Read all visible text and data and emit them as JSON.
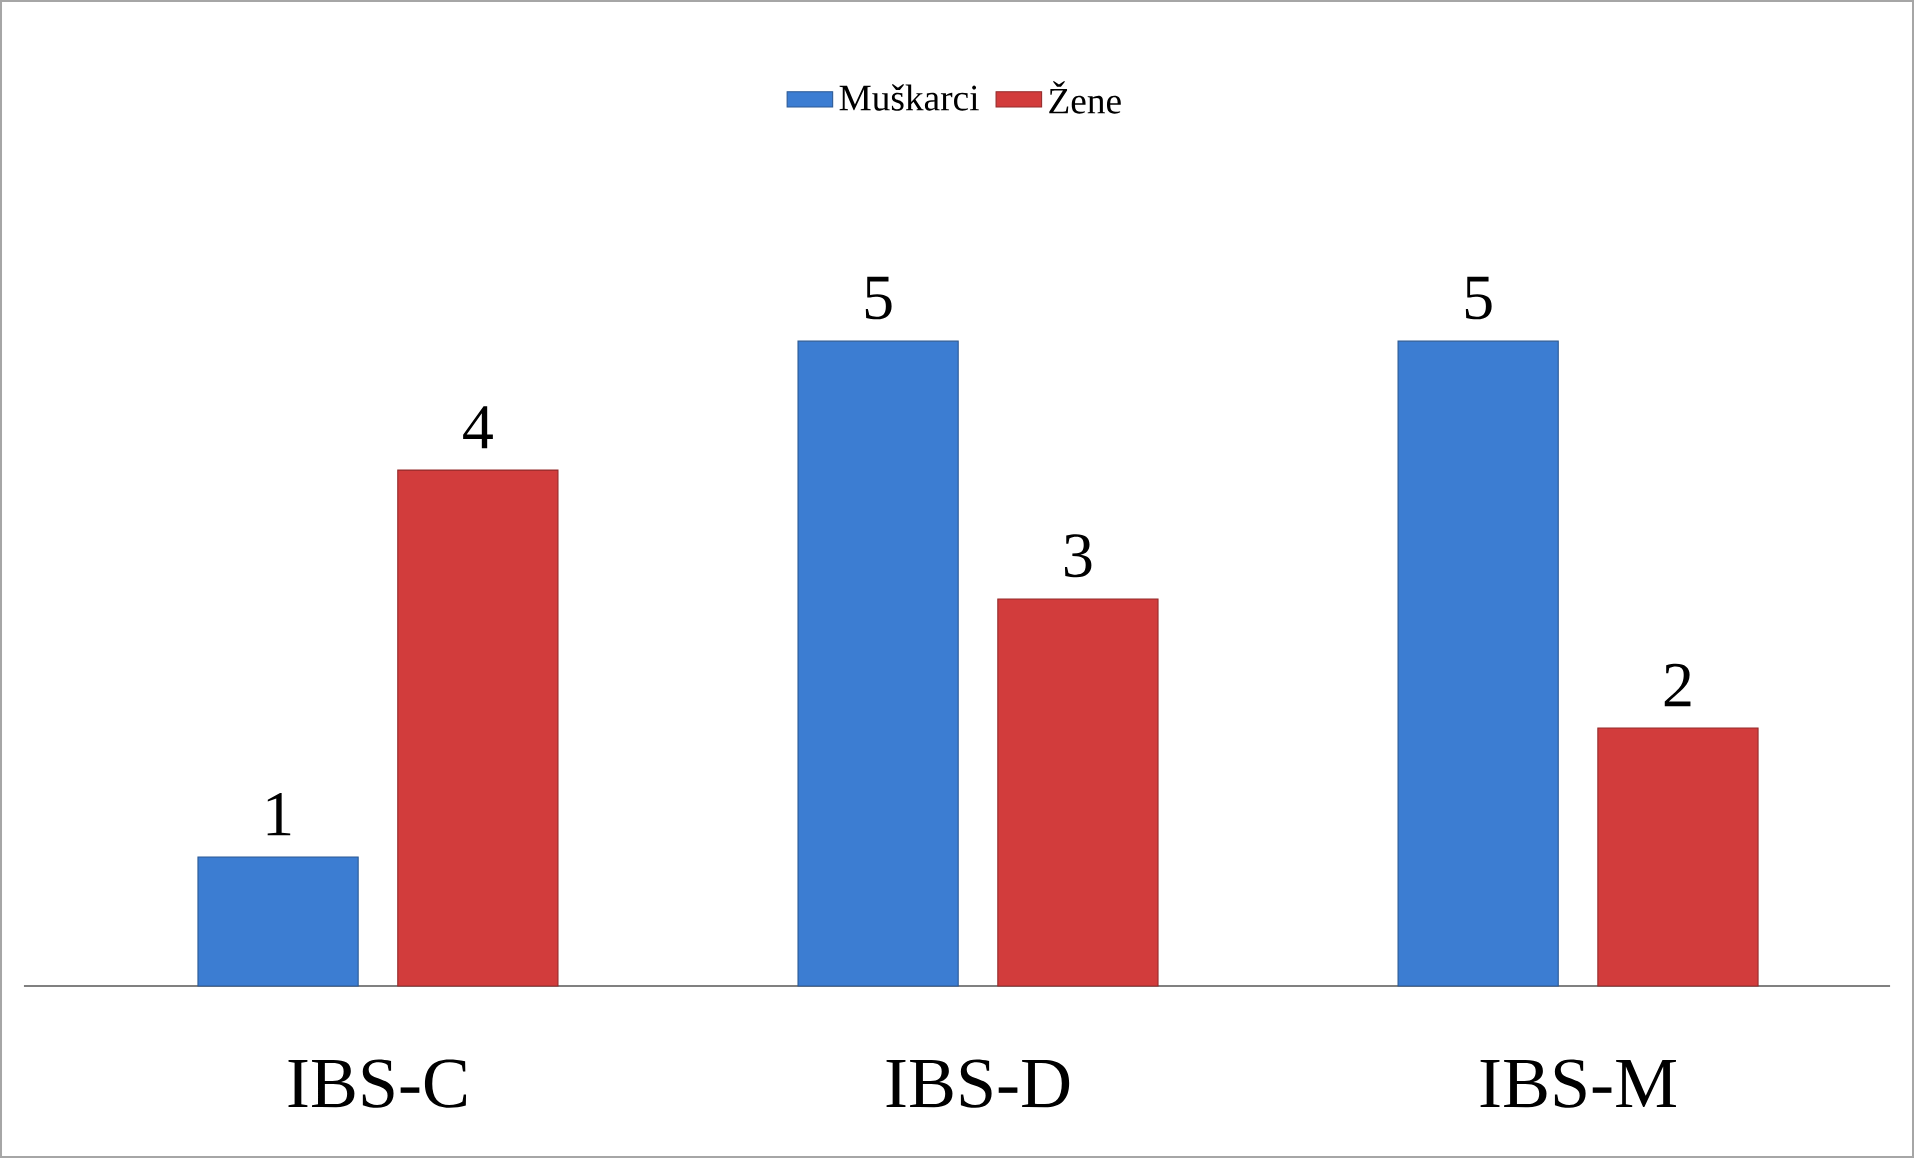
{
  "chart_data": {
    "type": "bar",
    "categories": [
      "IBS-C",
      "IBS-D",
      "IBS-M"
    ],
    "series": [
      {
        "name": "Muškarci",
        "color": "#3c7dd2",
        "values": [
          1,
          5,
          5
        ]
      },
      {
        "name": "Žene",
        "color": "#d23c3c",
        "values": [
          4,
          3,
          2
        ]
      }
    ],
    "data_labels": true,
    "legend": "top"
  }
}
